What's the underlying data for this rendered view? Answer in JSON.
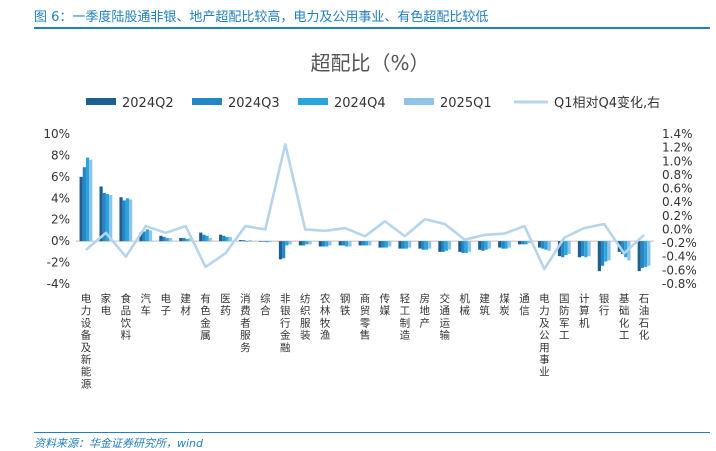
{
  "header": {
    "title": "图 6：一季度陆股通非银、地产超配比较高，电力及公用事业、有色超配比较低"
  },
  "footer": {
    "source": "资料来源：华金证券研究所，wind"
  },
  "colors": {
    "q2": "#1e5f92",
    "q3": "#2585c6",
    "q4": "#27a6de",
    "q1": "#8fc3e8",
    "line": "#b6d4ea",
    "accent": "#1f7fbf"
  },
  "chart_data": {
    "type": "bar",
    "title": "超配比（%）",
    "categories": [
      "电力设备及新能源",
      "家电",
      "食品饮料",
      "汽车",
      "电子",
      "建材",
      "有色金属",
      "医药",
      "消费者服务",
      "综合",
      "非银行金融",
      "纺织服装",
      "农林牧渔",
      "钢铁",
      "商贸零售",
      "传媒",
      "轻工制造",
      "房地产",
      "交通运输",
      "机械",
      "建筑",
      "煤炭",
      "通信",
      "电力及公用事业",
      "国防军工",
      "计算机",
      "银行",
      "基础化工",
      "石油石化"
    ],
    "series": [
      {
        "name": "2024Q2",
        "axis": "left",
        "values": [
          6.0,
          5.1,
          4.1,
          0.8,
          0.5,
          0.3,
          0.8,
          0.6,
          0.1,
          0.0,
          -1.7,
          -0.4,
          -0.5,
          -0.4,
          -0.4,
          -0.6,
          -0.7,
          -0.7,
          -1.0,
          -1.0,
          -0.8,
          -0.6,
          -0.3,
          -0.6,
          -1.4,
          -1.5,
          -2.8,
          -1.0,
          -2.8
        ]
      },
      {
        "name": "2024Q3",
        "axis": "left",
        "values": [
          6.9,
          4.5,
          3.8,
          0.9,
          0.4,
          0.3,
          0.6,
          0.5,
          0.1,
          0.0,
          -1.6,
          -0.4,
          -0.5,
          -0.4,
          -0.4,
          -0.6,
          -0.7,
          -0.8,
          -1.0,
          -1.1,
          -0.9,
          -0.7,
          -0.3,
          -0.7,
          -1.5,
          -1.4,
          -2.3,
          -1.2,
          -2.5
        ]
      },
      {
        "name": "2024Q4",
        "axis": "left",
        "values": [
          7.8,
          4.4,
          4.0,
          1.1,
          0.3,
          0.2,
          0.5,
          0.4,
          0.0,
          -0.1,
          -0.4,
          -0.3,
          -0.5,
          -0.5,
          -0.4,
          -0.6,
          -0.7,
          -0.8,
          -0.9,
          -1.1,
          -0.8,
          -0.7,
          -0.3,
          -0.8,
          -1.3,
          -1.5,
          -1.9,
          -1.5,
          -2.4
        ]
      },
      {
        "name": "2025Q1",
        "axis": "left",
        "values": [
          7.6,
          4.3,
          3.9,
          1.0,
          0.3,
          0.3,
          0.3,
          0.4,
          0.1,
          -0.1,
          -0.3,
          -0.3,
          -0.4,
          -0.5,
          -0.4,
          -0.5,
          -0.6,
          -0.7,
          -0.8,
          -1.0,
          -0.7,
          -0.6,
          -0.2,
          -0.9,
          -1.2,
          -1.4,
          -1.8,
          -1.8,
          -2.3
        ]
      },
      {
        "name": "Q1相对Q4变化,右",
        "axis": "right",
        "type": "line",
        "values": [
          -0.3,
          -0.05,
          -0.4,
          0.05,
          -0.05,
          0.05,
          -0.55,
          -0.35,
          0.05,
          0.0,
          1.25,
          0.0,
          -0.02,
          0.02,
          -0.1,
          0.12,
          -0.1,
          0.15,
          0.08,
          -0.15,
          -0.08,
          -0.06,
          0.05,
          -0.58,
          -0.12,
          0.02,
          0.08,
          -0.35,
          -0.08
        ]
      }
    ],
    "ylim": [
      -4,
      10
    ],
    "yticks": [
      "10%",
      "8%",
      "6%",
      "4%",
      "2%",
      "0%",
      "-2%",
      "-4%"
    ],
    "y2lim": [
      -0.8,
      1.4
    ],
    "y2ticks": [
      "1.4%",
      "1.2%",
      "1.0%",
      "0.8%",
      "0.6%",
      "0.4%",
      "0.2%",
      "0.0%",
      "-0.2%",
      "-0.4%",
      "-0.6%",
      "-0.8%"
    ],
    "legend": "top",
    "grid": false
  }
}
